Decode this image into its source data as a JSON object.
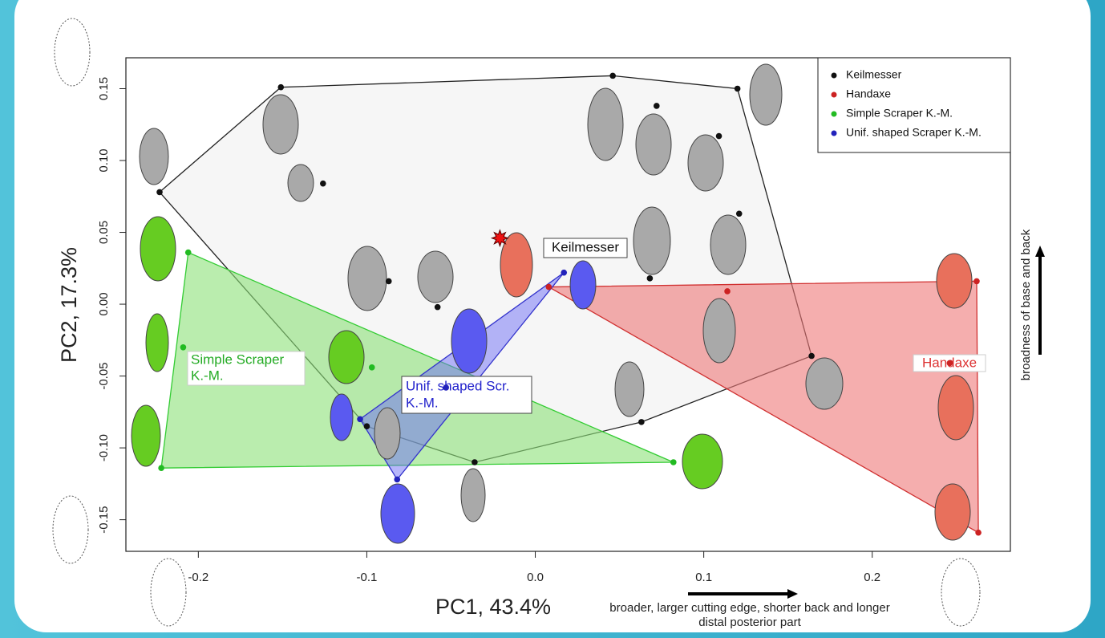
{
  "chart_data": {
    "type": "scatter",
    "xlabel": "PC1, 43.4%",
    "ylabel": "PC2, 17.3%",
    "x_note": [
      "broader, larger cutting edge, shorter back and longer",
      "distal posterior part"
    ],
    "y_note": "broadness of base and back",
    "xlim": [
      -0.243,
      0.282
    ],
    "ylim": [
      -0.172,
      0.1715
    ],
    "xticks": [
      -0.2,
      -0.1,
      {
        "value": 0,
        "label": "0.0"
      },
      0.1,
      0.2
    ],
    "yticks": [
      0.15,
      {
        "value": 0.1,
        "label": "0.10"
      },
      0.05,
      {
        "value": 0,
        "label": "0.00"
      },
      -0.05,
      {
        "value": -0.1,
        "label": "-0.10"
      },
      -0.15
    ],
    "legend": "upper right",
    "series": [
      {
        "name": "Keilmesser",
        "color": "#111111",
        "fill": "rgba(235,235,235,0.45)",
        "stroke": "#222222",
        "x": [
          -0.223,
          -0.151,
          0.046,
          0.12,
          -0.126,
          0.072,
          0.109,
          0.121,
          -0.087,
          -0.058,
          0.068,
          0.164,
          0.063,
          -0.036,
          -0.1
        ],
        "y": [
          0.078,
          0.151,
          0.159,
          0.15,
          0.084,
          0.138,
          0.117,
          0.063,
          0.016,
          -0.002,
          0.018,
          -0.036,
          -0.082,
          -0.11,
          -0.085
        ]
      },
      {
        "name": "Handaxe",
        "color": "#cc2222",
        "fill": "rgba(238,120,120,0.6)",
        "stroke": "#d03030",
        "x": [
          0.262,
          0.246,
          0.263,
          0.008,
          0.114
        ],
        "y": [
          0.016,
          -0.041,
          -0.159,
          0.012,
          0.009
        ]
      },
      {
        "name": "Simple Scraper K.-M.",
        "color": "#22bb22",
        "fill": "rgba(140,225,120,0.6)",
        "stroke": "#33cc33",
        "x": [
          -0.206,
          -0.209,
          -0.097,
          -0.222,
          0.082
        ],
        "y": [
          0.036,
          -0.03,
          -0.044,
          -0.114,
          -0.11
        ]
      },
      {
        "name": "Unif. shaped Scraper K.-M.",
        "color": "#2222bb",
        "fill": "rgba(110,110,245,0.5)",
        "stroke": "#3333cc",
        "x": [
          0.017,
          -0.053,
          -0.104,
          -0.082
        ],
        "y": [
          0.022,
          -0.058,
          -0.08,
          -0.122
        ]
      }
    ],
    "highlight": {
      "x": -0.021,
      "y": 0.046
    },
    "annotations": [
      "Keilmesser",
      [
        "Simple Scraper",
        "K.-M."
      ],
      [
        "Unif. shaped Scr.",
        "K.-M."
      ],
      "Handaxe"
    ]
  }
}
